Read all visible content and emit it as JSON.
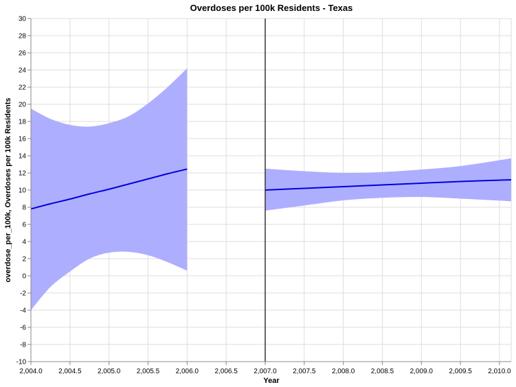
{
  "chart_data": {
    "type": "line",
    "title": "Overdoses per 100k Residents - Texas",
    "xlabel": "Year",
    "ylabel": "overdose_per_100k, Overdoses per 100k Residents",
    "xlim": [
      2004.0,
      2010.15
    ],
    "ylim": [
      -10,
      30
    ],
    "grid": true,
    "x_ticks": [
      2004.0,
      2004.5,
      2005.0,
      2005.5,
      2006.0,
      2006.5,
      2007.0,
      2007.5,
      2008.0,
      2008.5,
      2009.0,
      2009.5,
      2010.0
    ],
    "x_tick_labels": [
      "2,004.0",
      "2,004.5",
      "2,005.0",
      "2,005.5",
      "2,006.0",
      "2,006.5",
      "2,007.0",
      "2,007.5",
      "2,008.0",
      "2,008.5",
      "2,009.0",
      "2,009.5",
      "2,010.0"
    ],
    "y_ticks": [
      -10,
      -8,
      -6,
      -4,
      -2,
      0,
      2,
      4,
      6,
      8,
      10,
      12,
      14,
      16,
      18,
      20,
      22,
      24,
      26,
      28,
      30
    ],
    "vertical_rule_x": 2007.0,
    "colors": {
      "line": "#0000dd",
      "band": "#aaaaff",
      "rule": "#333333"
    },
    "series": [
      {
        "x": [
          2004.0,
          2004.25,
          2004.5,
          2004.75,
          2005.0,
          2005.25,
          2005.5,
          2005.75,
          2006.0
        ],
        "y": [
          7.8,
          8.4,
          8.95,
          9.55,
          10.1,
          10.7,
          11.3,
          11.9,
          12.45
        ],
        "lower": [
          -4.0,
          -1.3,
          0.5,
          2.0,
          2.7,
          2.8,
          2.4,
          1.6,
          0.6
        ],
        "upper": [
          19.5,
          18.3,
          17.6,
          17.4,
          17.8,
          18.6,
          20.1,
          22.0,
          24.2
        ]
      },
      {
        "x": [
          2007.0,
          2007.5,
          2008.0,
          2008.5,
          2009.0,
          2009.5,
          2010.15
        ],
        "y": [
          10.0,
          10.2,
          10.4,
          10.6,
          10.8,
          11.0,
          11.2
        ],
        "lower": [
          7.6,
          8.2,
          8.8,
          9.1,
          9.2,
          9.0,
          8.7
        ],
        "upper": [
          12.5,
          12.2,
          12.0,
          12.1,
          12.4,
          12.8,
          13.7
        ]
      }
    ]
  }
}
